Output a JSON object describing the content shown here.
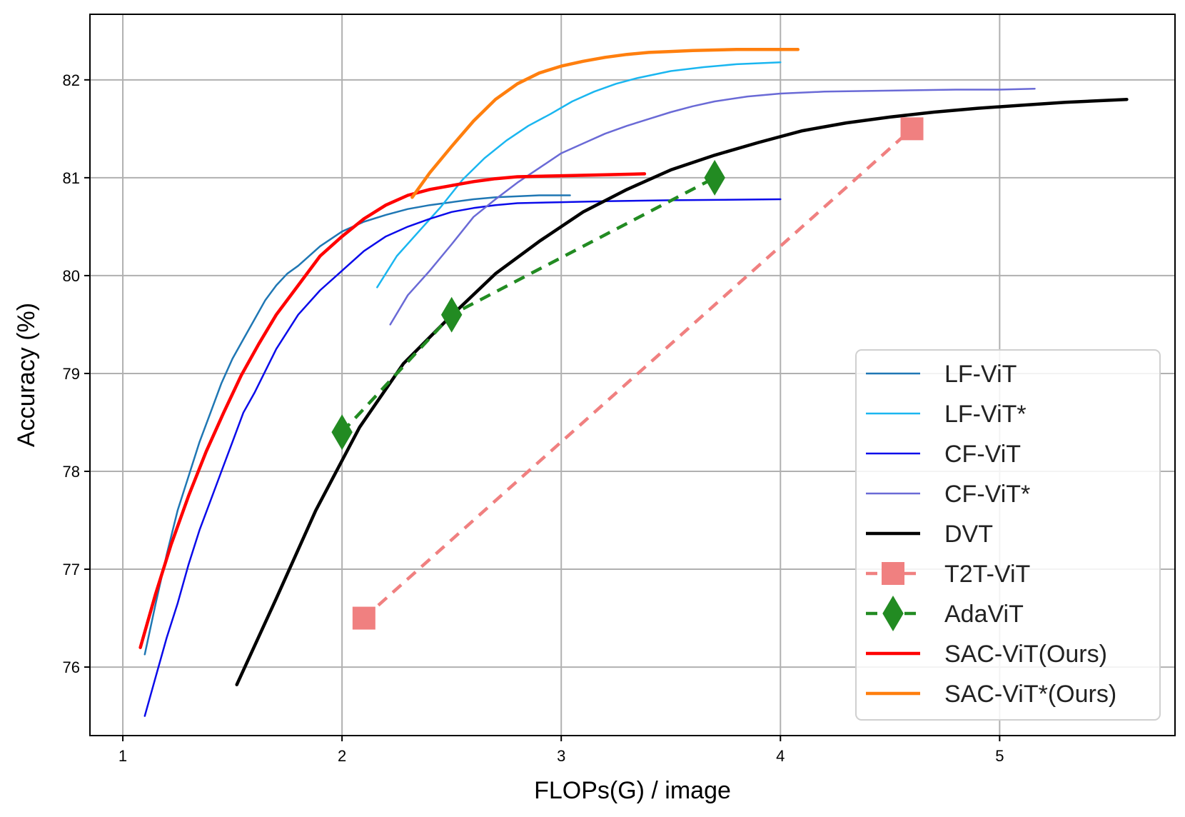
{
  "chart_data": {
    "type": "line",
    "title": "",
    "xlabel": "FLOPs(G) / image",
    "ylabel": "Accuracy (%)",
    "xlim": [
      0.85,
      5.8
    ],
    "ylim": [
      75.3,
      82.67
    ],
    "grid": true,
    "legend_position": "bottom-right",
    "xticks": [
      1,
      2,
      3,
      4,
      5
    ],
    "yticks": [
      76,
      77,
      78,
      79,
      80,
      81,
      82
    ],
    "series": [
      {
        "name": "LF-ViT",
        "color": "#1f77b4",
        "width": 2.5,
        "dash": "",
        "marker": "none",
        "x": [
          1.1,
          1.15,
          1.2,
          1.25,
          1.3,
          1.35,
          1.4,
          1.45,
          1.5,
          1.55,
          1.6,
          1.65,
          1.7,
          1.75,
          1.8,
          1.9,
          2.0,
          2.1,
          2.2,
          2.3,
          2.4,
          2.5,
          2.6,
          2.7,
          2.8,
          2.9,
          3.04
        ],
        "y": [
          76.13,
          76.65,
          77.15,
          77.6,
          77.95,
          78.3,
          78.6,
          78.9,
          79.15,
          79.35,
          79.55,
          79.75,
          79.9,
          80.02,
          80.1,
          80.3,
          80.45,
          80.55,
          80.62,
          80.68,
          80.72,
          80.75,
          80.78,
          80.8,
          80.81,
          80.82,
          80.82
        ]
      },
      {
        "name": "LF-ViT*",
        "color": "#1ab6f0",
        "width": 2.5,
        "dash": "",
        "marker": "none",
        "x": [
          2.16,
          2.25,
          2.35,
          2.45,
          2.55,
          2.65,
          2.75,
          2.85,
          2.95,
          3.05,
          3.15,
          3.25,
          3.35,
          3.5,
          3.65,
          3.8,
          4.0
        ],
        "y": [
          79.88,
          80.2,
          80.45,
          80.7,
          80.98,
          81.2,
          81.38,
          81.53,
          81.65,
          81.78,
          81.88,
          81.96,
          82.02,
          82.09,
          82.13,
          82.16,
          82.18
        ]
      },
      {
        "name": "CF-ViT",
        "color": "#0b0bea",
        "width": 2.5,
        "dash": "",
        "marker": "none",
        "x": [
          1.1,
          1.15,
          1.2,
          1.25,
          1.3,
          1.35,
          1.4,
          1.45,
          1.5,
          1.55,
          1.6,
          1.7,
          1.8,
          1.9,
          2.0,
          2.1,
          2.2,
          2.3,
          2.4,
          2.5,
          2.6,
          2.7,
          2.8,
          3.0,
          3.2,
          3.5,
          4.0
        ],
        "y": [
          75.5,
          75.9,
          76.3,
          76.65,
          77.05,
          77.4,
          77.7,
          78.0,
          78.3,
          78.6,
          78.8,
          79.25,
          79.6,
          79.85,
          80.05,
          80.25,
          80.4,
          80.5,
          80.58,
          80.65,
          80.69,
          80.72,
          80.74,
          80.75,
          80.76,
          80.77,
          80.78
        ]
      },
      {
        "name": "CF-ViT*",
        "color": "#6a6ad6",
        "width": 2.5,
        "dash": "",
        "marker": "none",
        "x": [
          2.22,
          2.3,
          2.4,
          2.5,
          2.6,
          2.7,
          2.8,
          2.9,
          3.0,
          3.1,
          3.2,
          3.3,
          3.4,
          3.5,
          3.6,
          3.7,
          3.85,
          4.0,
          4.2,
          4.5,
          4.8,
          5.0,
          5.16
        ],
        "y": [
          79.5,
          79.8,
          80.05,
          80.32,
          80.6,
          80.78,
          80.95,
          81.1,
          81.25,
          81.35,
          81.45,
          81.53,
          81.6,
          81.67,
          81.73,
          81.78,
          81.83,
          81.86,
          81.88,
          81.89,
          81.9,
          81.9,
          81.91
        ]
      },
      {
        "name": "DVT",
        "color": "#000000",
        "width": 4.5,
        "dash": "",
        "marker": "none",
        "x": [
          1.52,
          1.7,
          1.88,
          2.08,
          2.28,
          2.48,
          2.7,
          2.9,
          3.1,
          3.3,
          3.5,
          3.7,
          3.9,
          4.1,
          4.3,
          4.5,
          4.7,
          4.9,
          5.1,
          5.3,
          5.58
        ],
        "y": [
          75.82,
          76.7,
          77.6,
          78.45,
          79.1,
          79.55,
          80.02,
          80.35,
          80.65,
          80.88,
          81.08,
          81.23,
          81.36,
          81.48,
          81.56,
          81.62,
          81.67,
          81.71,
          81.74,
          81.77,
          81.8
        ]
      },
      {
        "name": "T2T-ViT",
        "color": "#f08080",
        "width": 4.5,
        "dash": "16 11",
        "marker": "square",
        "x": [
          2.1,
          4.6
        ],
        "y": [
          76.5,
          81.5
        ]
      },
      {
        "name": "AdaViT",
        "color": "#228b22",
        "width": 4.5,
        "dash": "16 11",
        "marker": "diamond",
        "x": [
          2.0,
          2.5,
          3.7
        ],
        "y": [
          78.4,
          79.6,
          81.0
        ]
      },
      {
        "name": "SAC-ViT(Ours)",
        "color": "#ff0000",
        "width": 4.5,
        "dash": "",
        "marker": "none",
        "x": [
          1.08,
          1.15,
          1.22,
          1.3,
          1.38,
          1.46,
          1.54,
          1.62,
          1.7,
          1.8,
          1.9,
          2.0,
          2.1,
          2.2,
          2.3,
          2.4,
          2.5,
          2.6,
          2.7,
          2.8,
          3.0,
          3.2,
          3.38
        ],
        "y": [
          76.2,
          76.75,
          77.25,
          77.75,
          78.2,
          78.6,
          78.98,
          79.3,
          79.6,
          79.9,
          80.2,
          80.4,
          80.58,
          80.72,
          80.82,
          80.88,
          80.92,
          80.96,
          80.99,
          81.01,
          81.02,
          81.03,
          81.04
        ]
      },
      {
        "name": "SAC-ViT*(Ours)",
        "color": "#ff7f0e",
        "width": 4.5,
        "dash": "",
        "marker": "none",
        "x": [
          2.32,
          2.4,
          2.5,
          2.6,
          2.7,
          2.8,
          2.9,
          3.0,
          3.1,
          3.2,
          3.3,
          3.4,
          3.5,
          3.6,
          3.8,
          4.08
        ],
        "y": [
          80.8,
          81.05,
          81.32,
          81.58,
          81.8,
          81.96,
          82.07,
          82.14,
          82.19,
          82.23,
          82.26,
          82.28,
          82.29,
          82.3,
          82.31,
          82.31
        ]
      }
    ]
  }
}
